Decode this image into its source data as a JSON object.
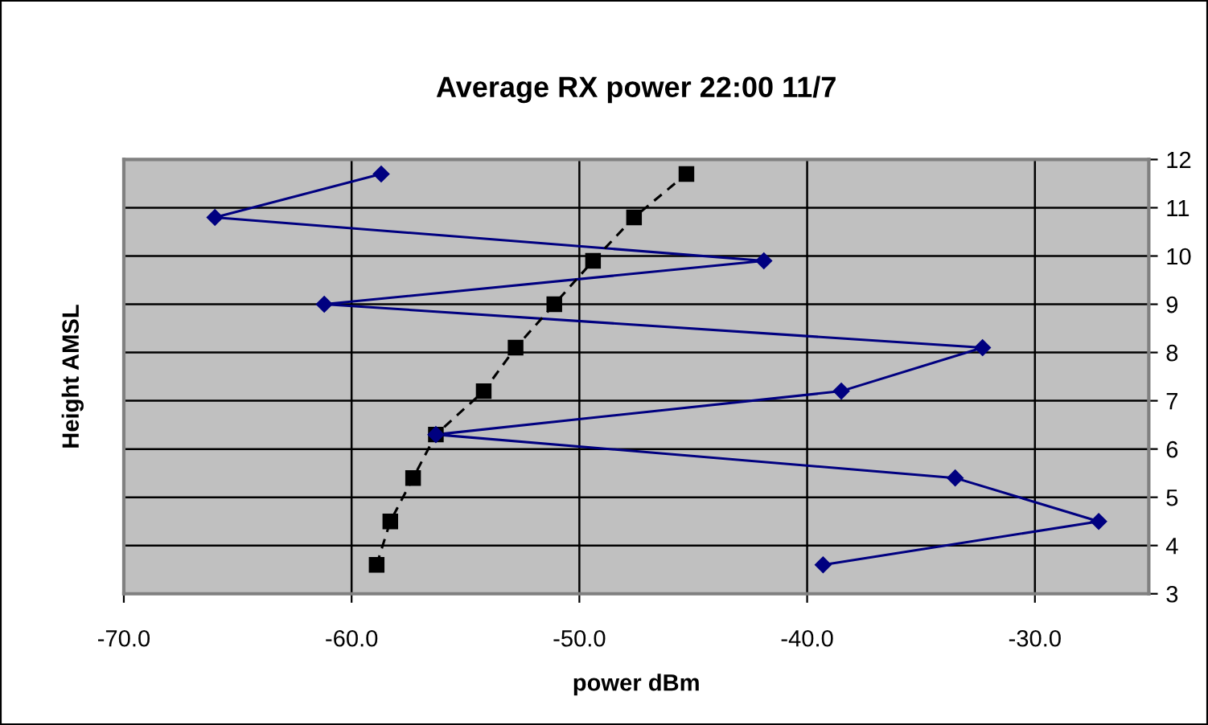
{
  "chart_data": {
    "type": "line",
    "title": "Average RX power 22:00 11/7",
    "xlabel": "power dBm",
    "ylabel": "Height AMSL",
    "series": [
      {
        "color": "#000080",
        "marker": "diamond",
        "line_style": "solid",
        "x": [
          -39.3,
          -27.2,
          -33.5,
          -56.3,
          -38.5,
          -32.3,
          -61.2,
          -41.9,
          -66.0,
          -58.7
        ],
        "values": [
          3.6,
          4.5,
          5.4,
          6.3,
          7.2,
          8.1,
          9.0,
          9.9,
          10.8,
          11.7
        ]
      },
      {
        "color": "#000000",
        "marker": "square",
        "line_style": "dashed",
        "x": [
          -58.9,
          -58.3,
          -57.3,
          -56.3,
          -54.2,
          -52.8,
          -51.1,
          -49.4,
          -47.6,
          -45.3
        ],
        "values": [
          3.6,
          4.5,
          5.4,
          6.3,
          7.2,
          8.1,
          9.0,
          9.9,
          10.8,
          11.7
        ]
      }
    ],
    "xlim": [
      -70,
      -25
    ],
    "xticks": [
      {
        "value": -70,
        "label": "-70.0"
      },
      {
        "value": -60,
        "label": "-60.0"
      },
      {
        "value": -50,
        "label": "-50.0"
      },
      {
        "value": -40,
        "label": "-40.0"
      },
      {
        "value": -30,
        "label": "-30.0"
      }
    ],
    "ylim": [
      3,
      12
    ],
    "yticks": [
      3,
      4,
      5,
      6,
      7,
      8,
      9,
      10,
      11,
      12
    ],
    "grid": true
  }
}
